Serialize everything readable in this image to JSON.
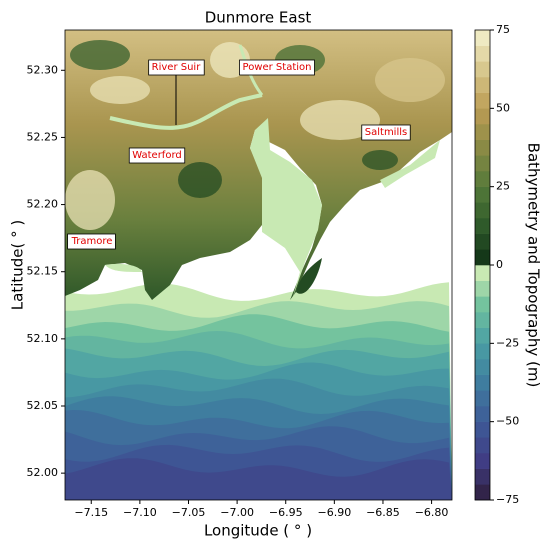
{
  "chart_data": {
    "type": "map",
    "title": "Dunmore East",
    "xlabel": "Longitude ( ° )",
    "ylabel": "Latitude( ° )",
    "xlim": [
      -7.177,
      -6.779
    ],
    "ylim": [
      51.98,
      52.33
    ],
    "xticks": [
      {
        "value": -7.15,
        "label": "−7.15"
      },
      {
        "value": -7.1,
        "label": "−7.10"
      },
      {
        "value": -7.05,
        "label": "−7.05"
      },
      {
        "value": -7.0,
        "label": "−7.00"
      },
      {
        "value": -6.95,
        "label": "−6.95"
      },
      {
        "value": -6.9,
        "label": "−6.90"
      },
      {
        "value": -6.85,
        "label": "−6.85"
      },
      {
        "value": -6.8,
        "label": "−6.80"
      }
    ],
    "yticks": [
      {
        "value": 52.3,
        "label": "52.30"
      },
      52.25,
      {
        "value": 52.2,
        "label": "52.20"
      },
      52.15,
      {
        "value": 52.1,
        "label": "52.10"
      },
      52.05,
      {
        "value": 52.0,
        "label": "52.00"
      }
    ],
    "annotations": [
      "River Suir",
      "Power Station",
      "Waterford",
      "Saltmills",
      "Tramore"
    ],
    "colorbar": {
      "label": "Bathymetry and Topography (m)",
      "lim": [
        -75,
        75
      ],
      "ticks": [
        75,
        50,
        25,
        0,
        {
          "value": -25,
          "label": "−25"
        },
        {
          "value": -50,
          "label": "−50"
        },
        {
          "value": -75,
          "label": "−75"
        }
      ],
      "colors_below": [
        "#2e1e3b",
        "#403d84",
        "#3e5b98",
        "#3f7d9f",
        "#4a9fa4",
        "#74c39e",
        "#ddf2b8"
      ],
      "colors_above": [
        "#0f2f15",
        "#2f5a2a",
        "#557a3a",
        "#8a8a45",
        "#bd9d55",
        "#d8c88e",
        "#f5f2cf"
      ]
    }
  }
}
